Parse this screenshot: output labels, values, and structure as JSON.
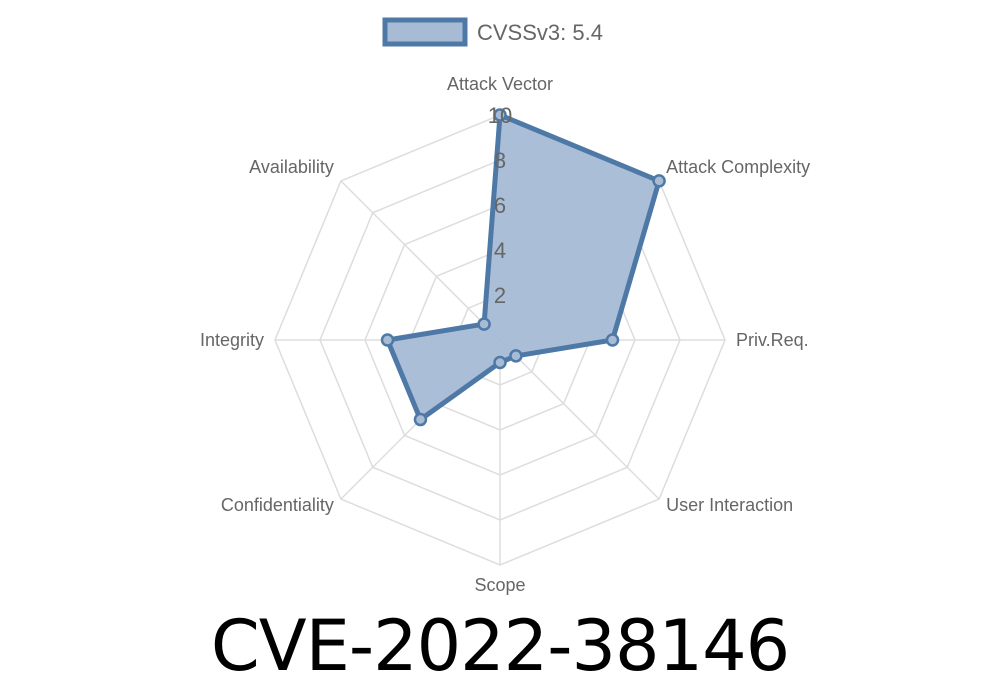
{
  "chart_data": {
    "type": "radar",
    "categories": [
      "Attack Vector",
      "Attack Complexity",
      "Priv.Req.",
      "User Interaction",
      "Scope",
      "Confidentiality",
      "Integrity",
      "Availability"
    ],
    "series": [
      {
        "name": "CVSSv3: 5.4",
        "values": [
          10,
          10,
          5,
          1,
          1,
          5,
          5,
          1
        ]
      }
    ],
    "rlim": [
      0,
      10
    ],
    "ticks": [
      "2",
      "4",
      "6",
      "8",
      "10"
    ],
    "grid": true,
    "legend": "top",
    "colors": {
      "line": "#4e79a7",
      "fill": "#a7bbd5",
      "grid": "#dddddd"
    }
  },
  "title": "CVE-2022-38146"
}
